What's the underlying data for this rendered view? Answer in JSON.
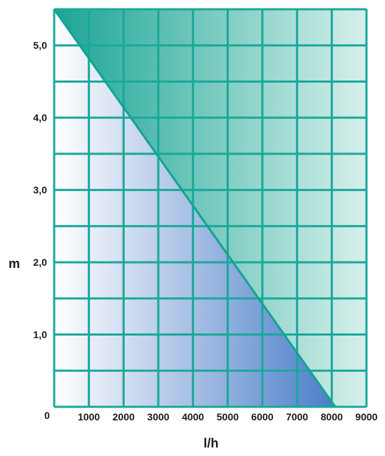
{
  "chart_data": {
    "type": "area",
    "title": "",
    "xlabel": "l/h",
    "ylabel": "m",
    "xlim": [
      0,
      9000
    ],
    "ylim": [
      0,
      5.5
    ],
    "x_ticks": [
      1000,
      2000,
      3000,
      4000,
      5000,
      6000,
      7000,
      8000,
      9000
    ],
    "x_tick_labels": [
      "1000",
      "2000",
      "3000",
      "4000",
      "5000",
      "6000",
      "7000",
      "8000",
      "9000"
    ],
    "y_ticks": [
      1.0,
      2.0,
      3.0,
      4.0,
      5.0
    ],
    "y_tick_labels": [
      "1,0",
      "2,0",
      "3,0",
      "4,0",
      "5,0"
    ],
    "origin_label": "0",
    "grid": true,
    "grid_x_step": 1000,
    "grid_y_step": 0.5,
    "series": [
      {
        "x": [
          0,
          8100
        ],
        "y": [
          5.5,
          0
        ]
      }
    ],
    "colors": {
      "grid": "#1aa89a",
      "curve": "#14a391",
      "upper_fill_dark": "#1aa594",
      "upper_fill_light": "#d6efeb",
      "lower_fill_light": "#ffffff",
      "lower_fill_dark": "#4a7dc9"
    }
  }
}
